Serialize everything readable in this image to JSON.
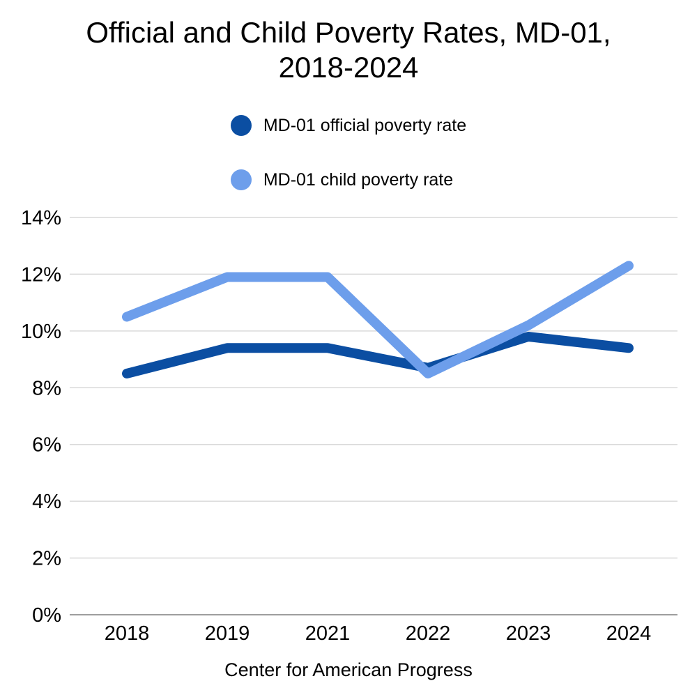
{
  "title": {
    "line1": "Official and Child Poverty Rates, MD-01,",
    "line2": "2018-2024",
    "full": "Official and Child Poverty Rates, MD-01, 2018-2024"
  },
  "legend": {
    "items": [
      {
        "label": "MD-01 official poverty rate",
        "color": "#0b4ea2"
      },
      {
        "label": "MD-01 child poverty rate",
        "color": "#6d9eeb"
      }
    ]
  },
  "footer": {
    "text": "Center for American Progress"
  },
  "axes": {
    "y_tick_labels": [
      "0%",
      "2%",
      "4%",
      "6%",
      "8%",
      "10%",
      "12%",
      "14%"
    ],
    "x_tick_labels": [
      "2018",
      "2019",
      "2021",
      "2022",
      "2023",
      "2024"
    ]
  },
  "colors": {
    "background": "#ffffff",
    "grid": "#d9d9d9",
    "axis": "#9e9e9e",
    "text": "#000000",
    "official_series": "#0b4ea2",
    "child_series": "#6d9eeb"
  },
  "chart_data": {
    "type": "line",
    "x": [
      "2018",
      "2019",
      "2021",
      "2022",
      "2023",
      "2024"
    ],
    "series": [
      {
        "name": "MD-01 official poverty rate",
        "color": "#0b4ea2",
        "values": [
          8.5,
          9.4,
          9.4,
          8.7,
          9.8,
          9.4
        ]
      },
      {
        "name": "MD-01 child poverty rate",
        "color": "#6d9eeb",
        "values": [
          10.5,
          11.9,
          11.9,
          8.5,
          10.2,
          12.3
        ]
      }
    ],
    "title": "Official and Child Poverty Rates, MD-01, 2018-2024",
    "xlabel": "",
    "ylabel": "",
    "ylim": [
      0,
      14
    ],
    "ytick_step": 2,
    "ytick_suffix": "%",
    "grid": true,
    "legend_position": "top",
    "annotation": "Center for American Progress"
  }
}
